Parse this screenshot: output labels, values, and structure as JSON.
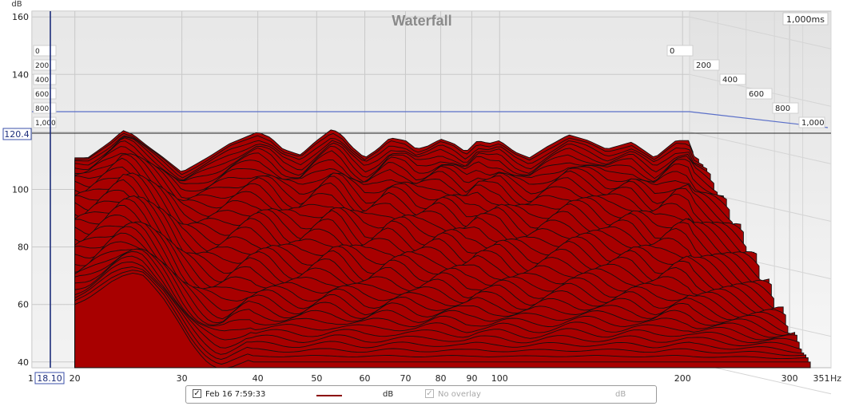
{
  "chart_data": {
    "type": "area",
    "title": "Waterfall",
    "xlabel": "Hz",
    "ylabel": "dB",
    "x_scale": "log",
    "xlim": [
      17,
      351
    ],
    "ylim": [
      38,
      162
    ],
    "x_ticks": [
      "20",
      "30",
      "40",
      "50",
      "60",
      "70",
      "80",
      "90",
      "100",
      "200",
      "300",
      "351"
    ],
    "y_ticks": [
      "40",
      "60",
      "80",
      "100",
      "120",
      "140",
      "160"
    ],
    "time_ticks": [
      "0",
      "200",
      "400",
      "600",
      "800",
      "1,000"
    ],
    "time_max_label": "1,000ms",
    "cursor": {
      "x_readout": "18.10",
      "y_readout": "120.4",
      "x_left_fragment": "1"
    },
    "fill_color": "#a80000",
    "line_color": "#111111",
    "peak_curve": {
      "x": [
        20,
        21,
        22,
        23,
        24,
        25,
        26,
        28,
        30,
        33,
        36,
        38,
        40,
        42,
        44,
        47,
        50,
        53,
        55,
        57,
        60,
        63,
        66,
        70,
        73,
        76,
        80,
        84,
        88,
        92,
        96,
        100,
        106,
        112,
        120,
        130,
        140,
        150,
        165,
        180,
        195,
        205,
        208
      ],
      "y": [
        111,
        111,
        114,
        117,
        120.5,
        119,
        116,
        111,
        106,
        111,
        116,
        118,
        120,
        118,
        114,
        112,
        117,
        121,
        119,
        115,
        111,
        114,
        118,
        117,
        114,
        115,
        117.5,
        116,
        113,
        117,
        116,
        117,
        113,
        111,
        115,
        119,
        117,
        114,
        116.5,
        111,
        117,
        117,
        113
      ]
    },
    "base_curve": {
      "x": [
        20,
        21,
        22,
        23,
        24,
        25,
        26,
        27,
        28,
        29,
        30,
        31,
        32,
        33,
        34,
        35,
        36,
        37,
        38,
        39
      ],
      "y": [
        60,
        62,
        65,
        68,
        70,
        71,
        70,
        66,
        62,
        57,
        52,
        47,
        43,
        40,
        38,
        37,
        38,
        39,
        40,
        41
      ]
    },
    "slices": 44
  },
  "legend": {
    "checked_mark": "✓",
    "series_label": "Feb 16 7:59:33",
    "series_color": "#8b0000",
    "series_unit": "dB",
    "overlay_label": "No overlay",
    "overlay_unit": "dB"
  }
}
